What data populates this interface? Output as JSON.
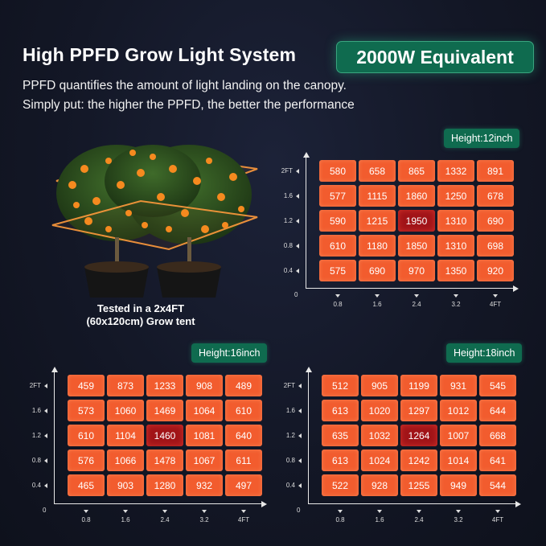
{
  "header": {
    "title": "High PPFD Grow Light System",
    "badge": "2000W Equivalent",
    "subtitle_1": "PPFD quantifies the amount of light landing on the canopy.",
    "subtitle_2": "Simply put: the higher the PPFD, the better the performance"
  },
  "tent_caption": {
    "line1": "Tested in a 2x4FT",
    "line2": "(60x120cm) Grow tent"
  },
  "colors": {
    "cell": "#f25c2e",
    "hot_cell": "#a11418",
    "badge": "#0f6b4f"
  },
  "chart_data": [
    {
      "type": "heatmap",
      "title": "Height:12inch",
      "y_ticks": [
        "2FT",
        "1.6",
        "1.2",
        "0.8",
        "0.4"
      ],
      "x_ticks": [
        "0.8",
        "1.6",
        "2.4",
        "3.2",
        "4FT"
      ],
      "origin": "0",
      "rows": [
        [
          "580",
          "658",
          "865",
          "1332",
          "891"
        ],
        [
          "577",
          "1115",
          "1860",
          "1250",
          "678"
        ],
        [
          "590",
          "1215",
          "1950",
          "1310",
          "690"
        ],
        [
          "610",
          "1180",
          "1850",
          "1310",
          "698"
        ],
        [
          "575",
          "690",
          "970",
          "1350",
          "920"
        ]
      ],
      "highlight": [
        2,
        2
      ]
    },
    {
      "type": "heatmap",
      "title": "Height:16inch",
      "y_ticks": [
        "2FT",
        "1.6",
        "1.2",
        "0.8",
        "0.4"
      ],
      "x_ticks": [
        "0.8",
        "1.6",
        "2.4",
        "3.2",
        "4FT"
      ],
      "origin": "0",
      "rows": [
        [
          "459",
          "873",
          "1233",
          "908",
          "489"
        ],
        [
          "573",
          "1060",
          "1469",
          "1064",
          "610"
        ],
        [
          "610",
          "1104",
          "1460",
          "1081",
          "640"
        ],
        [
          "576",
          "1066",
          "1478",
          "1067",
          "611"
        ],
        [
          "465",
          "903",
          "1280",
          "932",
          "497"
        ]
      ],
      "highlight": [
        2,
        2
      ]
    },
    {
      "type": "heatmap",
      "title": "Height:18inch",
      "y_ticks": [
        "2FT",
        "1.6",
        "1.2",
        "0.8",
        "0.4"
      ],
      "x_ticks": [
        "0.8",
        "1.6",
        "2.4",
        "3.2",
        "4FT"
      ],
      "origin": "0",
      "rows": [
        [
          "512",
          "905",
          "1199",
          "931",
          "545"
        ],
        [
          "613",
          "1020",
          "1297",
          "1012",
          "644"
        ],
        [
          "635",
          "1032",
          "1264",
          "1007",
          "668"
        ],
        [
          "613",
          "1024",
          "1242",
          "1014",
          "641"
        ],
        [
          "522",
          "928",
          "1255",
          "949",
          "544"
        ]
      ],
      "highlight": [
        2,
        2
      ]
    }
  ]
}
